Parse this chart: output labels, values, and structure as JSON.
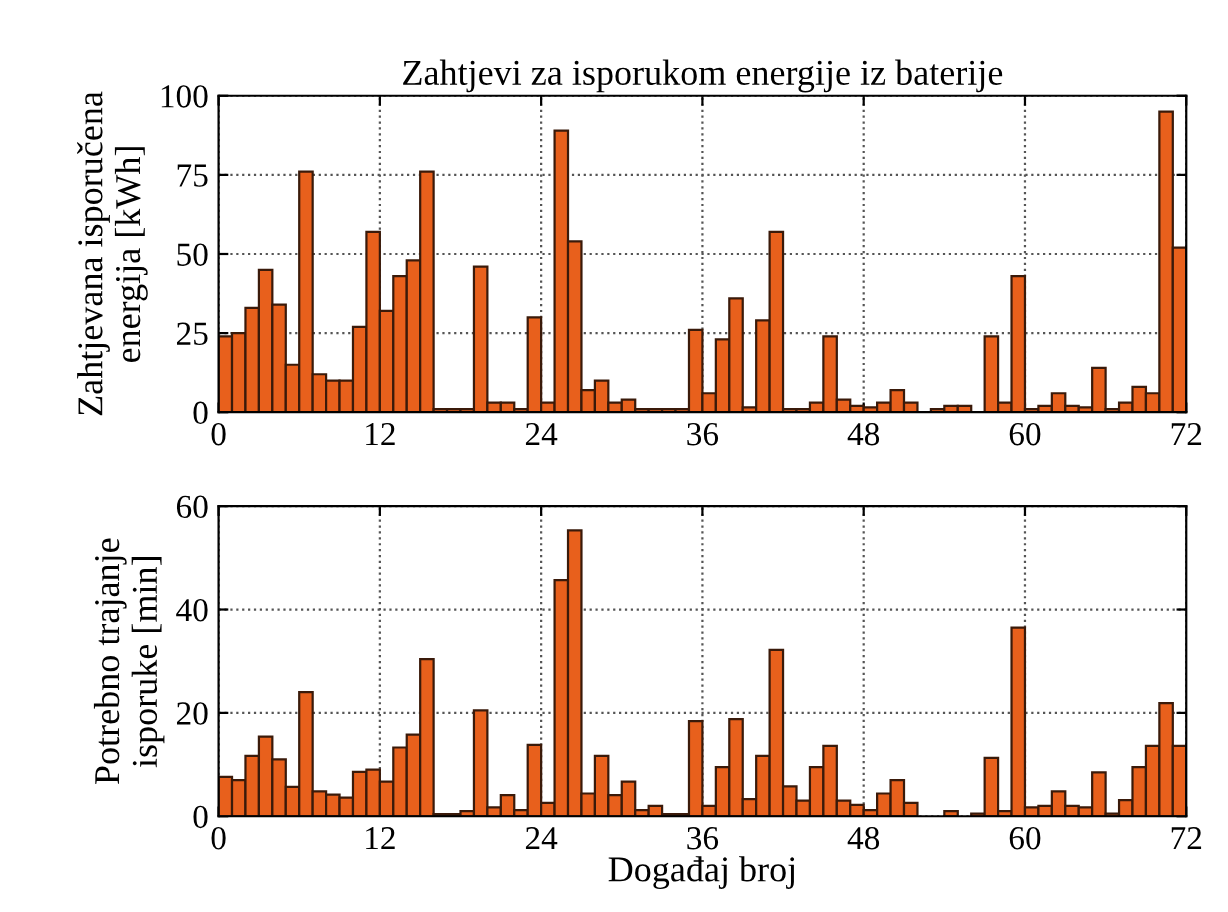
{
  "chart_data": [
    {
      "type": "bar",
      "title": "Zahtjevi za isporukom energije iz baterije",
      "ylabel": "Zahtjevana isporučena\nenergija [kWh]",
      "color": "#e8601c",
      "grid": true,
      "xlim": [
        0,
        72
      ],
      "xticks": [
        0,
        12,
        24,
        36,
        48,
        60,
        72
      ],
      "ylim": [
        0,
        100
      ],
      "yticks": [
        0,
        25,
        50,
        75,
        100
      ],
      "x": [
        0.5,
        1.5,
        2.5,
        3.5,
        4.5,
        5.5,
        6.5,
        7.5,
        8.5,
        9.5,
        10.5,
        11.5,
        12.5,
        13.5,
        14.5,
        15.5,
        16.5,
        17.5,
        18.5,
        19.5,
        20.5,
        21.5,
        22.5,
        23.5,
        24.5,
        25.5,
        26.5,
        27.5,
        28.5,
        29.5,
        30.5,
        31.5,
        32.5,
        33.5,
        34.5,
        35.5,
        36.5,
        37.5,
        38.5,
        39.5,
        40.5,
        41.5,
        42.5,
        43.5,
        44.5,
        45.5,
        46.5,
        47.5,
        48.5,
        49.5,
        50.5,
        51.5,
        52.5,
        53.5,
        54.5,
        55.5,
        56.5,
        57.5,
        58.5,
        59.5,
        60.5,
        61.5,
        62.5,
        63.5,
        64.5,
        65.5,
        66.5,
        67.5,
        68.5,
        69.5,
        70.5,
        71.5
      ],
      "values": [
        24,
        25,
        33,
        45,
        34,
        15,
        76,
        12,
        10,
        10,
        27,
        57,
        32,
        43,
        48,
        76,
        1,
        1,
        1,
        46,
        3,
        3,
        1,
        30,
        3,
        89,
        54,
        7,
        10,
        3,
        4,
        1,
        1,
        1,
        1,
        26,
        6,
        23,
        36,
        1.5,
        29,
        57,
        1,
        1,
        3,
        24,
        4,
        2,
        1.5,
        3,
        7,
        3,
        null,
        1,
        2,
        2,
        null,
        24,
        3,
        43,
        1,
        2,
        6,
        2,
        1.5,
        14,
        1,
        3,
        8,
        6,
        95,
        52
      ]
    },
    {
      "type": "bar",
      "ylabel": "Potrebno trajanje\nisporuke [min]",
      "xlabel": "Događaj broj",
      "color": "#e8601c",
      "grid": true,
      "xlim": [
        0,
        72
      ],
      "xticks": [
        0,
        12,
        24,
        36,
        48,
        60,
        72
      ],
      "ylim": [
        0,
        60
      ],
      "yticks": [
        0,
        20,
        40,
        60
      ],
      "x": [
        0.5,
        1.5,
        2.5,
        3.5,
        4.5,
        5.5,
        6.5,
        7.5,
        8.5,
        9.5,
        10.5,
        11.5,
        12.5,
        13.5,
        14.5,
        15.5,
        16.5,
        17.5,
        18.5,
        19.5,
        20.5,
        21.5,
        22.5,
        23.5,
        24.5,
        25.5,
        26.5,
        27.5,
        28.5,
        29.5,
        30.5,
        31.5,
        32.5,
        33.5,
        34.5,
        35.5,
        36.5,
        37.5,
        38.5,
        39.5,
        40.5,
        41.5,
        42.5,
        43.5,
        44.5,
        45.5,
        46.5,
        47.5,
        48.5,
        49.5,
        50.5,
        51.5,
        52.5,
        53.5,
        54.5,
        55.5,
        56.5,
        57.5,
        58.5,
        59.5,
        60.5,
        61.5,
        62.5,
        63.5,
        64.5,
        65.5,
        66.5,
        67.5,
        68.5,
        69.5,
        70.5,
        71.5
      ],
      "values": [
        7.6,
        7,
        11.7,
        15.4,
        11,
        5.7,
        24,
        4.8,
        4.2,
        3.6,
        8.6,
        9,
        6.7,
        13.3,
        15.8,
        30.4,
        0.4,
        0.4,
        1,
        20.5,
        1.7,
        4.1,
        1.2,
        13.8,
        2.6,
        45.7,
        55.3,
        4.4,
        11.7,
        4.1,
        6.7,
        1.2,
        2,
        0.4,
        0.4,
        18.4,
        2,
        9.5,
        18.8,
        3.3,
        11.7,
        32.2,
        5.8,
        3,
        9.5,
        13.6,
        3,
        2.2,
        1.2,
        4.4,
        7,
        2.6,
        null,
        null,
        1,
        null,
        0.5,
        11.3,
        1,
        36.5,
        1.7,
        2,
        4.8,
        2,
        1.7,
        8.5,
        0.5,
        3.1,
        9.5,
        13.6,
        21.9,
        13.6
      ]
    }
  ]
}
